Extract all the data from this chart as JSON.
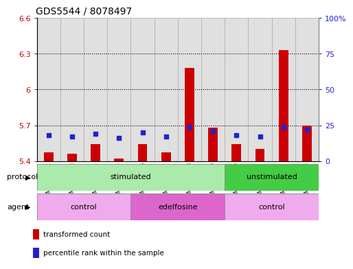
{
  "title": "GDS5544 / 8078497",
  "samples": [
    "GSM1084272",
    "GSM1084273",
    "GSM1084274",
    "GSM1084275",
    "GSM1084276",
    "GSM1084277",
    "GSM1084278",
    "GSM1084279",
    "GSM1084260",
    "GSM1084261",
    "GSM1084262",
    "GSM1084263"
  ],
  "transformed_count": [
    5.47,
    5.46,
    5.54,
    5.42,
    5.54,
    5.47,
    6.18,
    5.68,
    5.54,
    5.5,
    6.33,
    5.7
  ],
  "percentile_rank": [
    18,
    17,
    19,
    16,
    20,
    17,
    24,
    21,
    18,
    17,
    24,
    22
  ],
  "ylim_left": [
    5.4,
    6.6
  ],
  "ylim_right": [
    0,
    100
  ],
  "yticks_left": [
    5.4,
    5.7,
    6.0,
    6.3,
    6.6
  ],
  "yticks_right": [
    0,
    25,
    50,
    75,
    100
  ],
  "ytick_labels_left": [
    "5.4",
    "5.7",
    "6",
    "6.3",
    "6.6"
  ],
  "ytick_labels_right": [
    "0",
    "25",
    "50",
    "75",
    "100%"
  ],
  "hlines": [
    5.7,
    6.0,
    6.3
  ],
  "bar_color": "#cc0000",
  "dot_color": "#2222cc",
  "bar_width": 0.4,
  "dot_size": 22,
  "protocol_groups": [
    {
      "label": "stimulated",
      "start": 0,
      "end": 8,
      "color": "#aaeaaa"
    },
    {
      "label": "unstimulated",
      "start": 8,
      "end": 12,
      "color": "#44cc44"
    }
  ],
  "agent_groups": [
    {
      "label": "control",
      "start": 0,
      "end": 4,
      "color": "#f0aaee"
    },
    {
      "label": "edelfosine",
      "start": 4,
      "end": 8,
      "color": "#dd66cc"
    },
    {
      "label": "control",
      "start": 8,
      "end": 12,
      "color": "#f0aaee"
    }
  ],
  "legend_bar_color": "#cc0000",
  "legend_dot_color": "#2222cc",
  "legend_label_bar": "transformed count",
  "legend_label_dot": "percentile rank within the sample",
  "title_fontsize": 10,
  "axis_label_color_left": "#cc0000",
  "axis_label_color_right": "#2222cc",
  "col_bg_color": "#e0e0e0",
  "plot_bg": "#ffffff"
}
